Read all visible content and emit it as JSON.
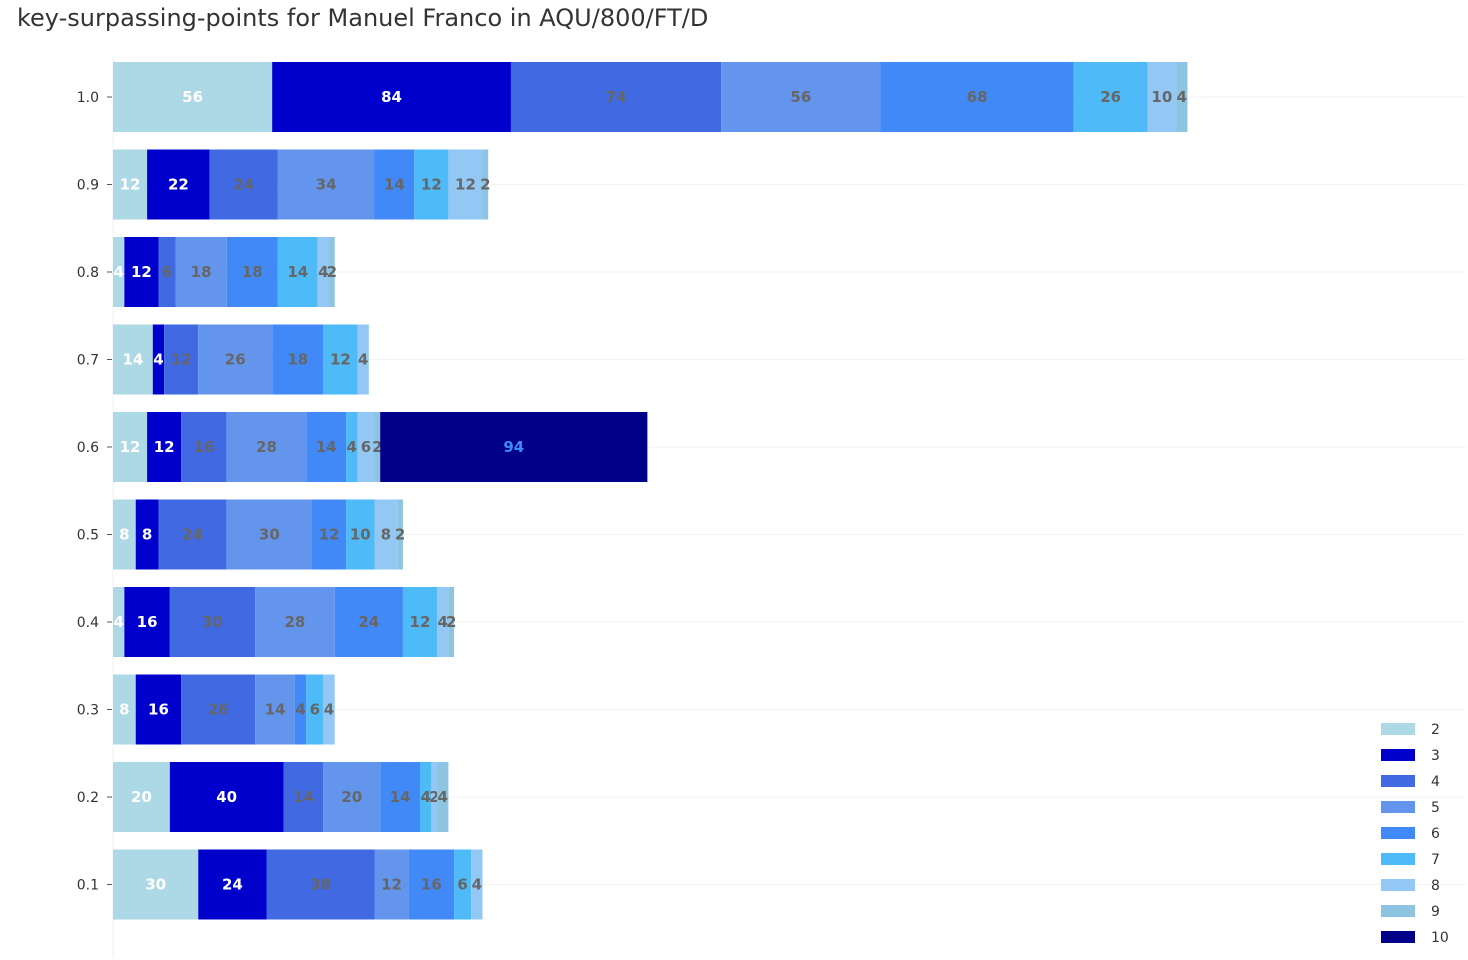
{
  "chart_data": {
    "type": "bar",
    "orientation": "horizontal",
    "stacked": true,
    "title": "key-surpassing-points for Manuel Franco in AQU/800/FT/D",
    "xlabel": "",
    "ylabel": "",
    "categories": [
      "1.0",
      "0.9",
      "0.8",
      "0.7",
      "0.6",
      "0.5",
      "0.4",
      "0.3",
      "0.2",
      "0.1"
    ],
    "xlim": [
      0,
      476
    ],
    "grid": true,
    "legend_position": "bottom-right",
    "series": [
      {
        "name": "2",
        "color": "#add8e6",
        "label_color": "#ffffff",
        "values": [
          56,
          12,
          4,
          14,
          12,
          8,
          4,
          8,
          20,
          30
        ]
      },
      {
        "name": "3",
        "color": "#0000cd",
        "label_color": "#ffffff",
        "values": [
          84,
          22,
          12,
          4,
          12,
          8,
          16,
          16,
          40,
          24
        ]
      },
      {
        "name": "4",
        "color": "#4169e1",
        "label_color": "#666666",
        "values": [
          74,
          24,
          6,
          12,
          16,
          24,
          30,
          26,
          14,
          38
        ]
      },
      {
        "name": "5",
        "color": "#6495ed",
        "label_color": "#666666",
        "values": [
          56,
          34,
          18,
          26,
          28,
          30,
          28,
          14,
          20,
          12
        ]
      },
      {
        "name": "6",
        "color": "#4189f7",
        "label_color": "#666666",
        "values": [
          68,
          14,
          18,
          18,
          14,
          12,
          24,
          4,
          14,
          16
        ]
      },
      {
        "name": "7",
        "color": "#4ebaf7",
        "label_color": "#666666",
        "values": [
          26,
          12,
          14,
          12,
          4,
          10,
          12,
          6,
          4,
          6
        ]
      },
      {
        "name": "8",
        "color": "#94c8f4",
        "label_color": "#666666",
        "values": [
          10,
          12,
          4,
          4,
          6,
          8,
          4,
          4,
          2,
          4
        ]
      },
      {
        "name": "9",
        "color": "#8dc4e2",
        "label_color": "#666666",
        "values": [
          4,
          2,
          2,
          0,
          2,
          2,
          2,
          0,
          4,
          0
        ]
      },
      {
        "name": "10",
        "color": "#00008b",
        "label_color": "#4189f7",
        "values": [
          0,
          0,
          0,
          0,
          94,
          0,
          0,
          0,
          0,
          0
        ]
      }
    ]
  }
}
